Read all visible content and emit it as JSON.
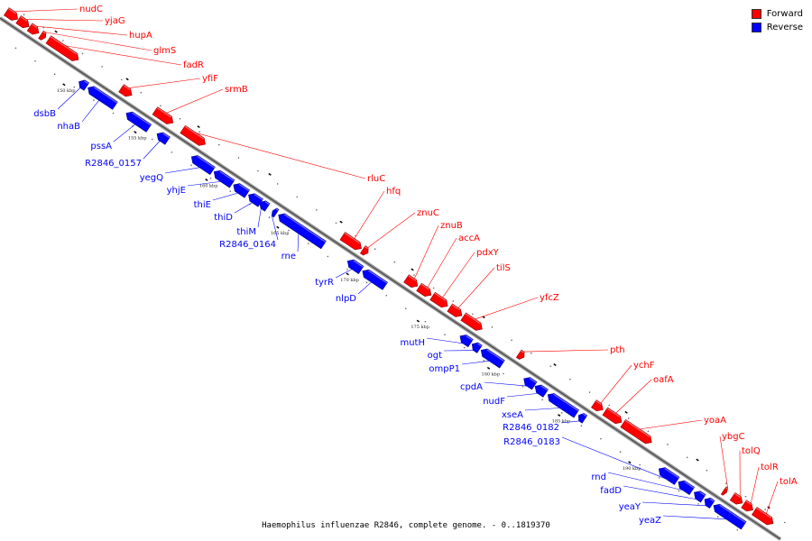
{
  "caption": "Haemophilus influenzae R2846, complete genome. - 0..1819370",
  "legend": [
    {
      "label": "Forward",
      "color": "#ff0000"
    },
    {
      "label": "Reverse",
      "color": "#0000ff"
    }
  ],
  "colors": {
    "forward": "#ff0000",
    "reverse": "#0000ff"
  },
  "kbp_ticks": [
    "150 kbp",
    "155 kbp",
    "160 kbp",
    "165 kbp",
    "170 kbp",
    "175 kbp",
    "180 kbp",
    "185 kbp",
    "190 kbp"
  ],
  "forward_genes": [
    "nudC",
    "yjaG",
    "hupA",
    "glmS",
    "fadR",
    "yfiF",
    "srmB",
    "rluC",
    "hfq",
    "znuC",
    "znuB",
    "accA",
    "pdxY",
    "tilS",
    "yfcZ",
    "pth",
    "ychF",
    "oafA",
    "yoaA",
    "ybgC",
    "tolQ",
    "tolR",
    "tolA"
  ],
  "reverse_genes": [
    "dsbB",
    "nhaB",
    "pssA",
    "R2846_0157",
    "yegQ",
    "yhjE",
    "thiE",
    "thiD",
    "thiM",
    "R2846_0164",
    "rne",
    "tyrR",
    "nlpD",
    "mutH",
    "ogt",
    "ompP1",
    "cpdA",
    "nudF",
    "xseA",
    "R2846_0182",
    "R2846_0183",
    "rnd",
    "fadD",
    "yeaY",
    "yeaZ"
  ]
}
